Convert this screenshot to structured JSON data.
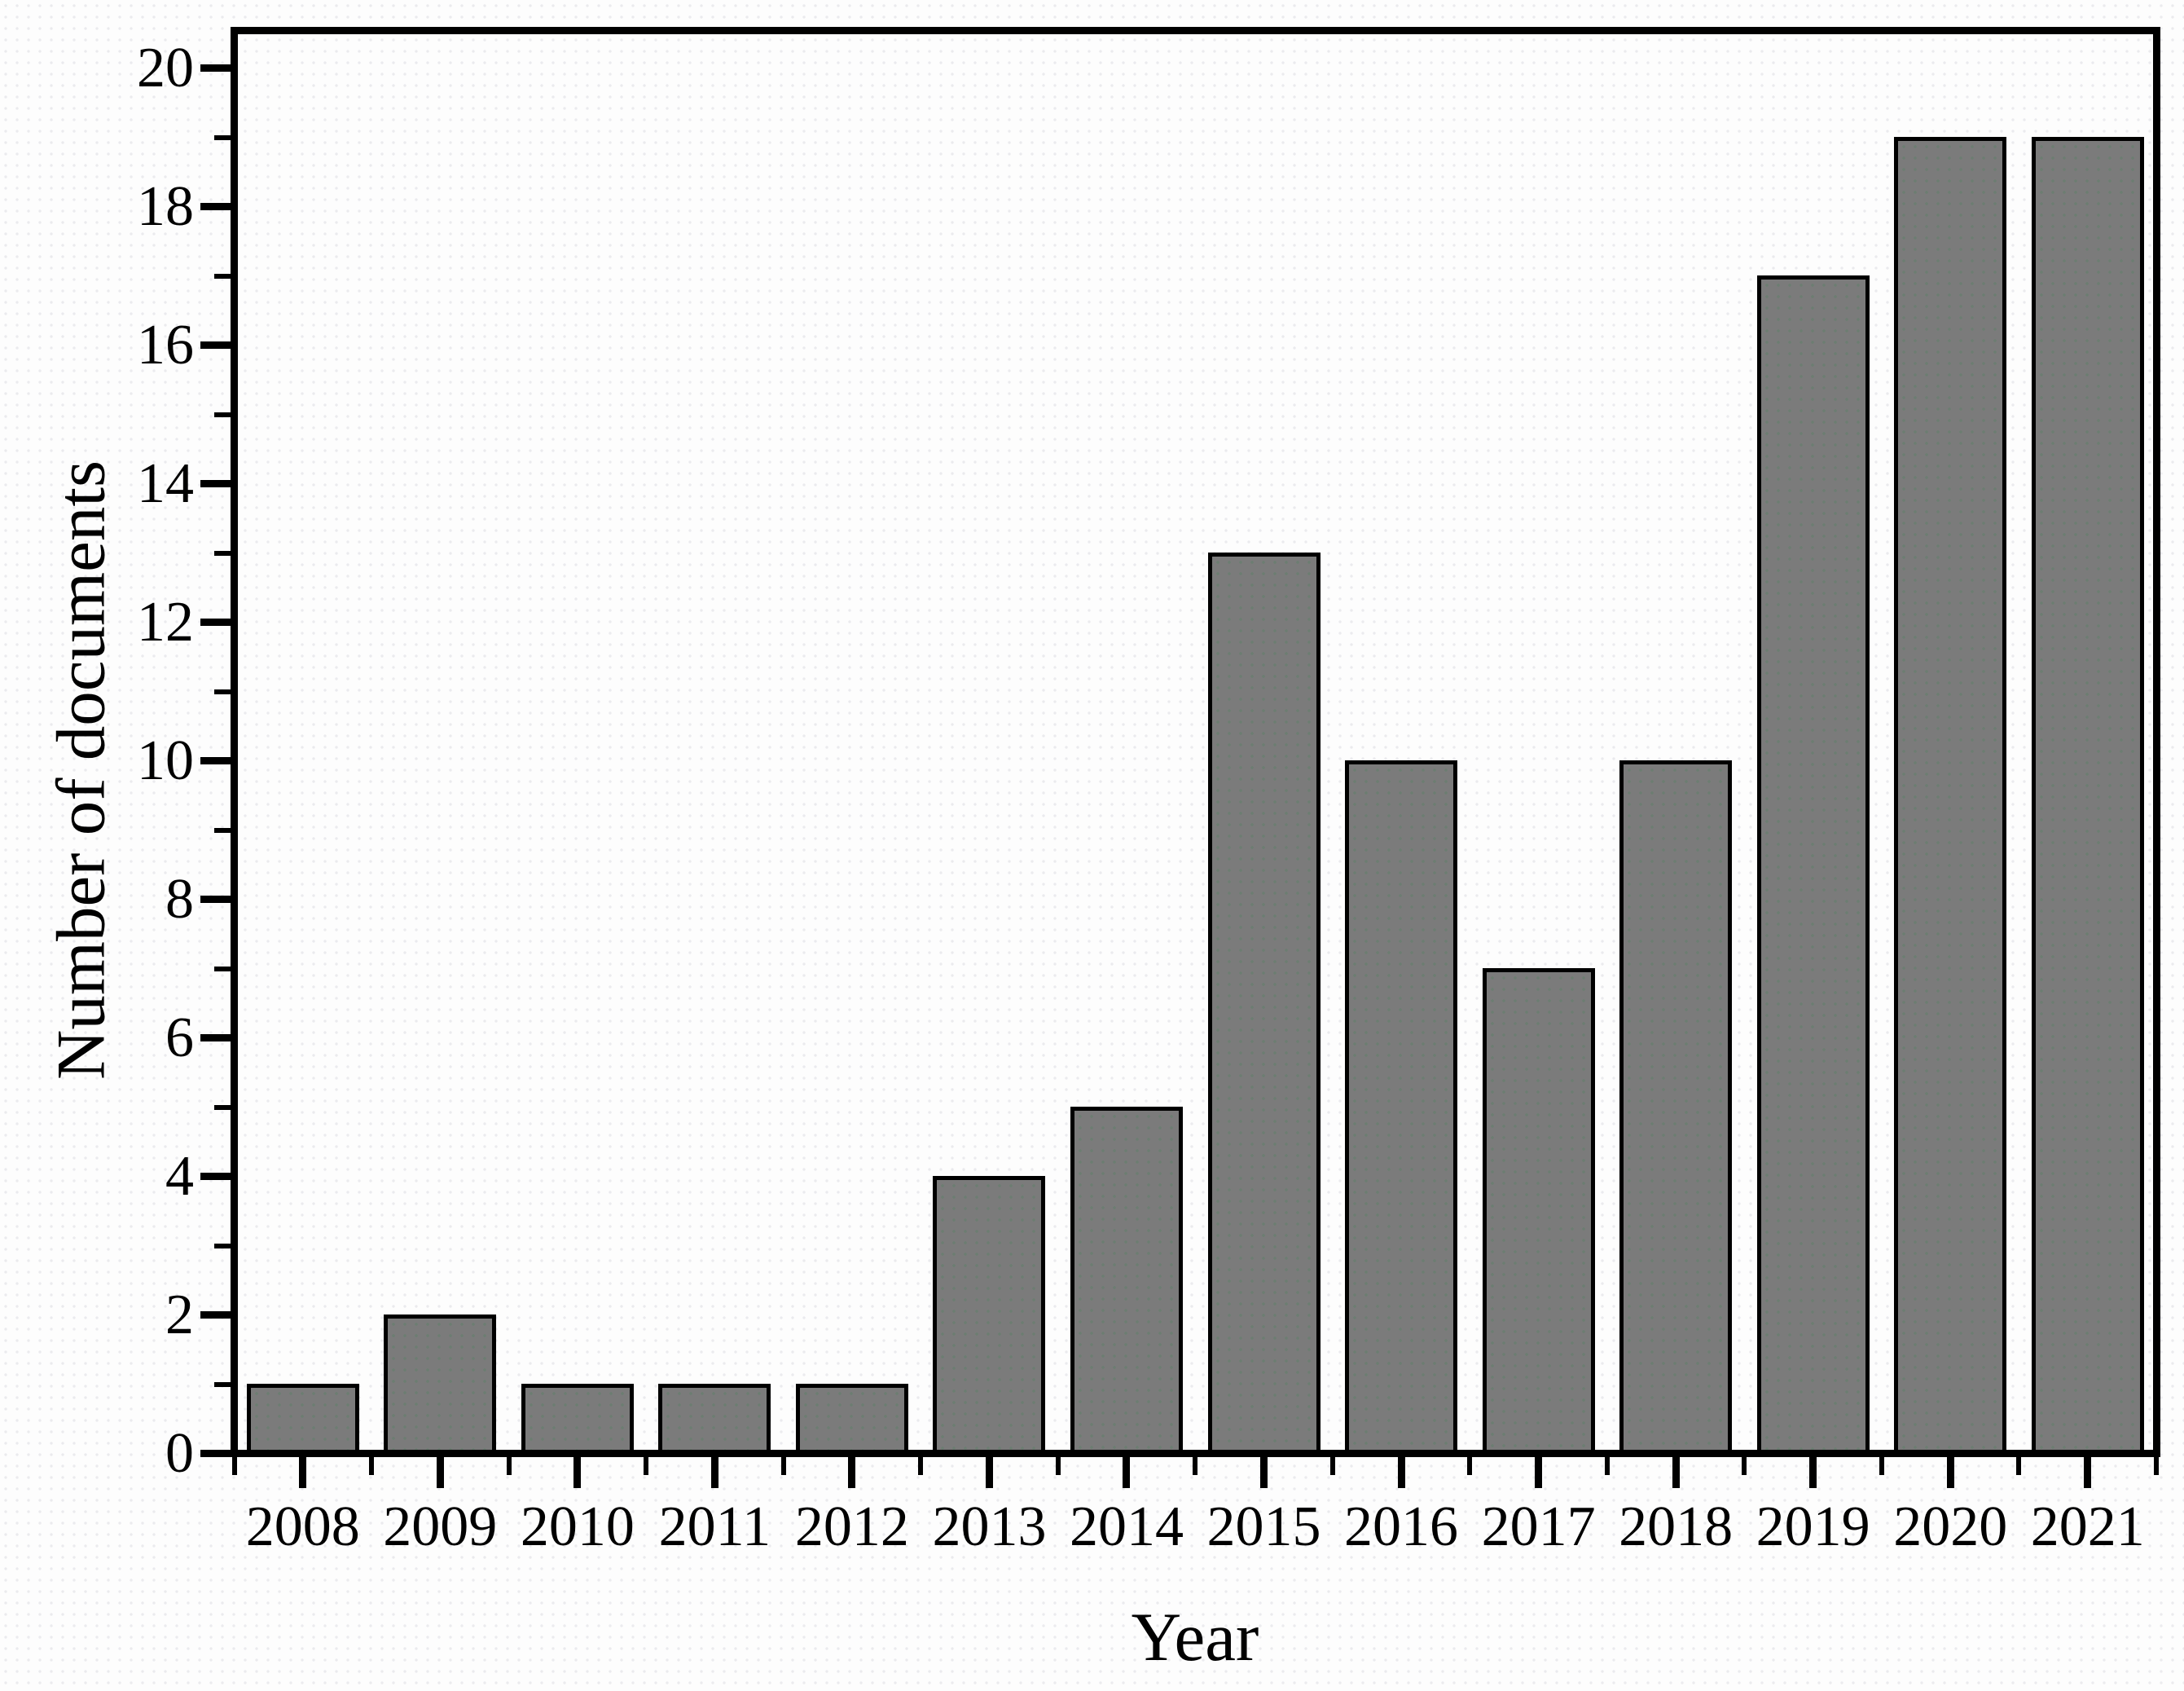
{
  "chart_data": {
    "type": "bar",
    "title": "",
    "xlabel": "Year",
    "ylabel": "Number of documents",
    "categories": [
      "2008",
      "2009",
      "2010",
      "2011",
      "2012",
      "2013",
      "2014",
      "2015",
      "2016",
      "2017",
      "2018",
      "2019",
      "2020",
      "2021"
    ],
    "values": [
      1,
      2,
      1,
      1,
      1,
      4,
      5,
      13,
      10,
      7,
      10,
      17,
      19,
      19
    ],
    "ylim": [
      0,
      20
    ],
    "yticks_major": [
      0,
      2,
      4,
      6,
      8,
      10,
      12,
      14,
      16,
      18,
      20
    ],
    "ytick_minor_step": 1,
    "xtick_minor_at_category_boundaries": true,
    "grid": false,
    "legend_position": "none",
    "colors": {
      "bar_fill": "#7b7b7b",
      "bar_border": "#000000",
      "axis": "#000000",
      "text": "#000000",
      "background": "#fdfdfd"
    }
  }
}
